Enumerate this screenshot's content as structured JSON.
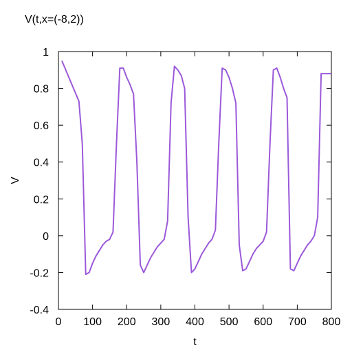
{
  "chart_data": {
    "type": "line",
    "title": "V(t,x=(-8,2))",
    "xlabel": "t",
    "ylabel": "V",
    "xlim": [
      0,
      800
    ],
    "ylim": [
      -0.4,
      1
    ],
    "xticks": [
      0,
      100,
      200,
      300,
      400,
      500,
      600,
      700,
      800
    ],
    "yticks": [
      -0.4,
      -0.2,
      0,
      0.2,
      0.4,
      0.6,
      0.8,
      1
    ],
    "xtick_labels": [
      "0",
      "100",
      "200",
      "300",
      "400",
      "500",
      "600",
      "700",
      "800"
    ],
    "ytick_labels": [
      "-0.4",
      "-0.2",
      "0",
      "0.2",
      "0.4",
      "0.6",
      "0.8",
      "1"
    ],
    "grid": false,
    "line_color": "#9b59d9",
    "series": [
      {
        "x": [
          10,
          60,
          70,
          80,
          90,
          100,
          110,
          120,
          130,
          140,
          150,
          160,
          170,
          180,
          190,
          200,
          210,
          220,
          230,
          240,
          250,
          260,
          270,
          280,
          290,
          300,
          310,
          320,
          330,
          340,
          350,
          360,
          370,
          380,
          390,
          400,
          410,
          420,
          430,
          440,
          450,
          460,
          470,
          480,
          490,
          500,
          510,
          520,
          530,
          540,
          550,
          560,
          570,
          580,
          590,
          600,
          610,
          620,
          630,
          640,
          650,
          660,
          670,
          680,
          690,
          700,
          710,
          720,
          730,
          740,
          750,
          760,
          770,
          780,
          790,
          800
        ],
        "y": [
          0.95,
          0.73,
          0.5,
          -0.21,
          -0.2,
          -0.15,
          -0.11,
          -0.08,
          -0.05,
          -0.03,
          -0.02,
          0.02,
          0.5,
          0.91,
          0.91,
          0.86,
          0.82,
          0.77,
          0.4,
          -0.16,
          -0.2,
          -0.16,
          -0.12,
          -0.09,
          -0.06,
          -0.04,
          -0.02,
          0.08,
          0.72,
          0.92,
          0.9,
          0.87,
          0.8,
          0.1,
          -0.2,
          -0.18,
          -0.14,
          -0.1,
          -0.07,
          -0.04,
          -0.02,
          0.03,
          0.5,
          0.91,
          0.9,
          0.86,
          0.8,
          0.72,
          -0.05,
          -0.19,
          -0.18,
          -0.14,
          -0.1,
          -0.07,
          -0.05,
          -0.03,
          0.02,
          0.5,
          0.9,
          0.91,
          0.86,
          0.8,
          0.75,
          -0.18,
          -0.19,
          -0.15,
          -0.11,
          -0.08,
          -0.05,
          -0.03,
          0.0,
          0.1,
          0.88,
          0.88,
          0.88,
          0.88
        ]
      }
    ]
  }
}
